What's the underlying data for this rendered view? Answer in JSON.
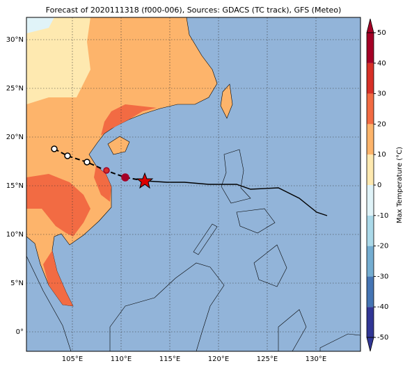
{
  "map": {
    "title": "Forecast of 2020111318 (f000-006), Sources: GDACS (TC track), GFS (Meteo)",
    "lon_ticks": [
      {
        "value": 105,
        "label": "105°E"
      },
      {
        "value": 110,
        "label": "110°E"
      },
      {
        "value": 115,
        "label": "115°E"
      },
      {
        "value": 120,
        "label": "120°E"
      },
      {
        "value": 125,
        "label": "125°E"
      },
      {
        "value": 130,
        "label": "130°E"
      }
    ],
    "lat_ticks": [
      {
        "value": 0,
        "label": "0°"
      },
      {
        "value": 5,
        "label": "5°N"
      },
      {
        "value": 10,
        "label": "10°N"
      },
      {
        "value": 15,
        "label": "15°N"
      },
      {
        "value": 20,
        "label": "20°N"
      },
      {
        "value": 25,
        "label": "25°N"
      },
      {
        "value": 30,
        "label": "30°N"
      }
    ],
    "colorbar": {
      "label": "Max Temperature (°C)",
      "ticks": [
        -50,
        -40,
        -30,
        -20,
        -10,
        0,
        10,
        20,
        30,
        40,
        50
      ],
      "colors": [
        "#313695",
        "#4575b4",
        "#74add1",
        "#abd9e9",
        "#e0f3f8",
        "#fee9b0",
        "#fdb46b",
        "#f26b43",
        "#d73027",
        "#a50026"
      ]
    }
  }
}
